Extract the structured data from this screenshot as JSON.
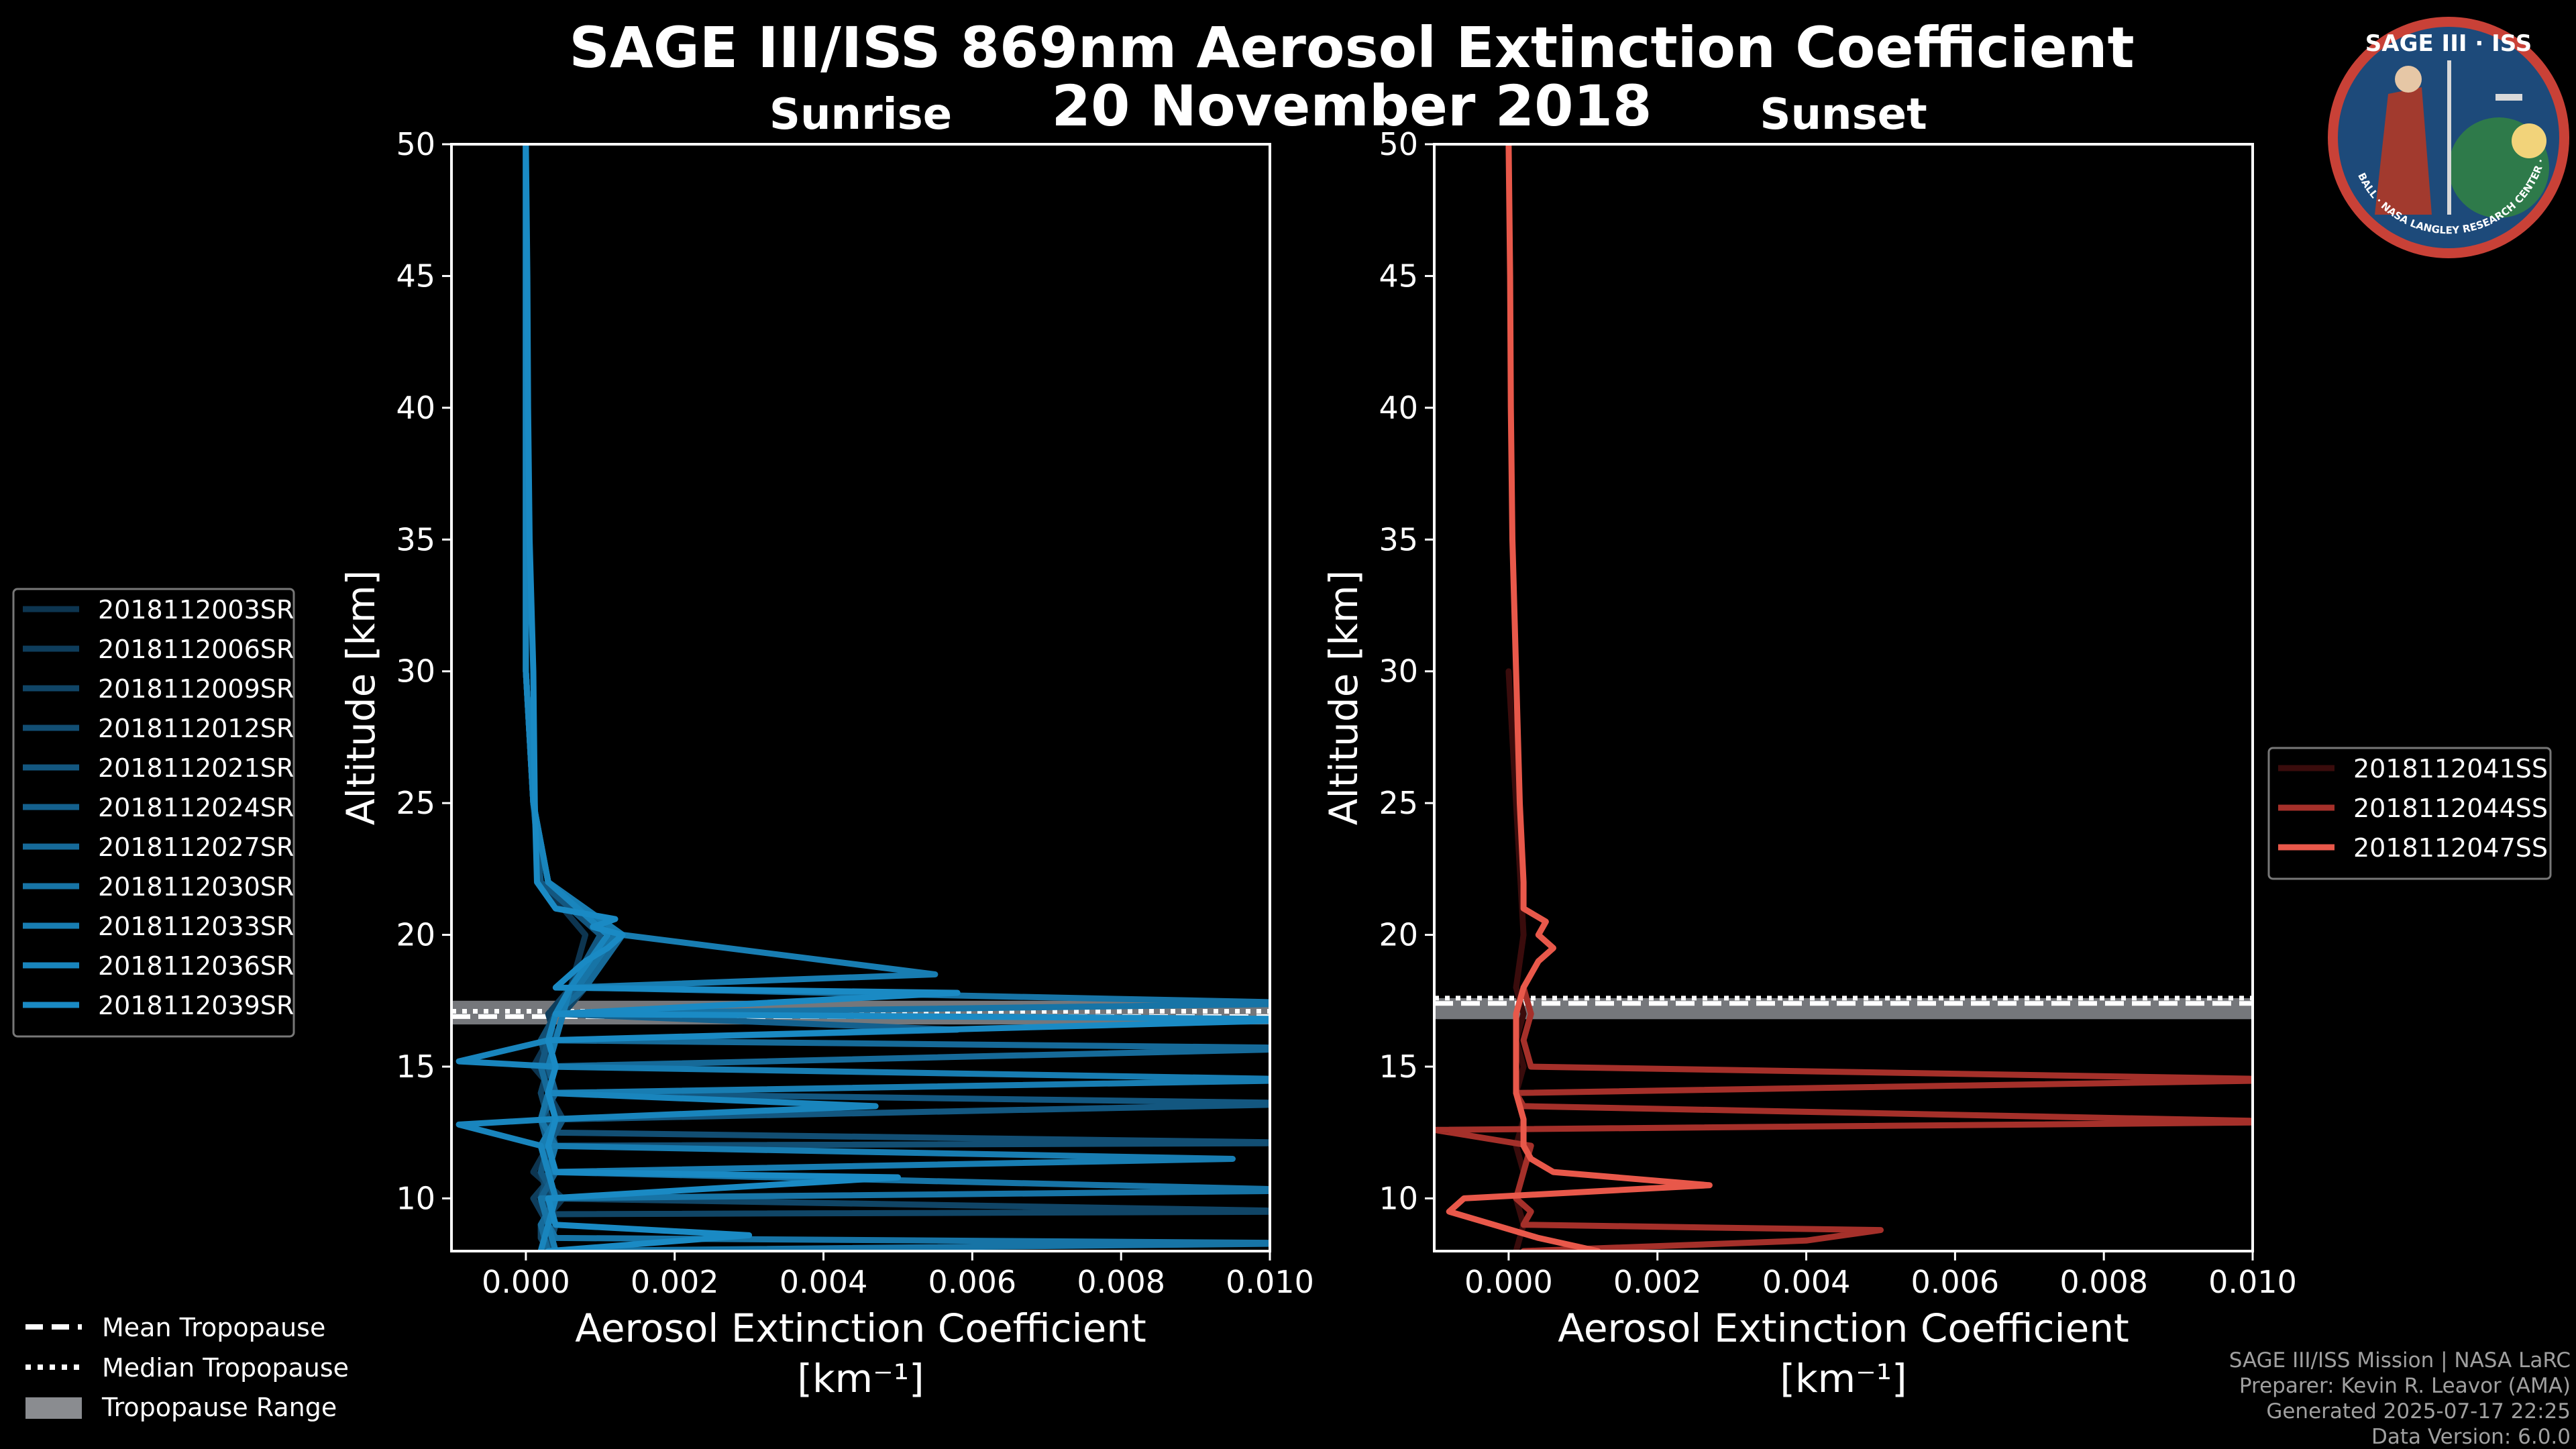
{
  "title": "SAGE III/ISS 869nm Aerosol Extinction Coefficient",
  "subtitle": "20 November 2018",
  "logo": {
    "text_top": "SAGE III · ISS",
    "text_ring": "BALL · NASA LANGLEY RESEARCH CENTER · TAS · ESA"
  },
  "colors": {
    "background": "#000000",
    "sunrise": "#1a8ac4",
    "sunset_light": "#e8584a",
    "sunset_mid": "#a5302a",
    "sunset_dark": "#3a0c0c",
    "tropo_band": "#8a8c90"
  },
  "footer": {
    "lines": [
      "SAGE III/ISS Mission | NASA LaRC",
      "Preparer: Kevin R. Leavor (AMA)",
      "Generated 2025-07-17 22:25",
      "Data Version: 6.0.0"
    ]
  },
  "tropo_legend": [
    "Mean Tropopause",
    "Median Tropopause",
    "Tropopause Range"
  ],
  "chart_data": [
    {
      "type": "line",
      "panel": "sunrise",
      "title": "Sunrise",
      "xlabel": "Aerosol Extinction Coefficient",
      "xunit": "[km⁻¹]",
      "ylabel": "Altitude [km]",
      "xlim": [
        -0.001,
        0.01
      ],
      "ylim": [
        8,
        50
      ],
      "xticks": [
        0.0,
        0.002,
        0.004,
        0.006,
        0.008,
        0.01
      ],
      "xticklabels": [
        "0.000",
        "0.002",
        "0.004",
        "0.006",
        "0.008",
        "0.010"
      ],
      "yticks": [
        10,
        15,
        20,
        25,
        30,
        35,
        40,
        45,
        50
      ],
      "tropopause": {
        "mean": 16.9,
        "median": 17.1,
        "range": [
          16.6,
          17.5
        ]
      },
      "legend_position": "left",
      "series": [
        {
          "name": "2018112003SR",
          "color": "#0d3550",
          "alt": [
            8.0,
            9.0,
            10.0,
            11.0,
            12.0,
            13.0,
            14.0,
            15.0,
            16.0,
            17.0,
            18.0,
            20.0,
            22.0,
            25.0,
            30.0,
            40.0,
            50.0
          ],
          "ext": [
            0.0004,
            0.0002,
            0.0005,
            0.0001,
            0.0003,
            0.0002,
            0.0004,
            0.0001,
            0.0003,
            0.0004,
            0.0006,
            0.0008,
            0.0002,
            0.0001,
            0.0,
            0.0,
            0.0
          ]
        },
        {
          "name": "2018112006SR",
          "color": "#0e3d5c",
          "alt": [
            8.0,
            9.0,
            10.0,
            11.0,
            12.0,
            13.0,
            14.0,
            15.0,
            16.0,
            17.0,
            18.0,
            20.0,
            22.0,
            25.0,
            30.0,
            40.0,
            50.0
          ],
          "ext": [
            0.0002,
            0.0003,
            0.0001,
            0.0004,
            0.0002,
            0.0005,
            0.0003,
            0.0002,
            0.0004,
            0.0003,
            0.0006,
            0.0012,
            0.0003,
            0.0001,
            0.0,
            0.0,
            0.0
          ]
        },
        {
          "name": "2018112009SR",
          "color": "#104566",
          "alt": [
            8.0,
            8.5,
            9.0,
            9.4,
            9.5,
            10.0,
            11.0,
            12.0,
            13.0,
            14.0,
            15.0,
            16.0,
            17.0,
            18.0,
            20.0,
            22.0,
            25.0,
            30.0,
            40.0,
            50.0
          ],
          "ext": [
            0.0003,
            0.0002,
            0.0002,
            0.0004,
            0.0108,
            0.0003,
            0.0002,
            0.0004,
            0.0003,
            0.0002,
            0.0003,
            0.0004,
            0.0005,
            0.0008,
            0.0011,
            0.0003,
            0.0001,
            0.0,
            0.0,
            0.0
          ]
        },
        {
          "name": "2018112012SR",
          "color": "#124e73",
          "alt": [
            8.0,
            9.0,
            10.0,
            11.0,
            12.0,
            12.1,
            12.5,
            13.0,
            14.0,
            15.0,
            16.0,
            17.0,
            18.0,
            20.0,
            22.0,
            25.0,
            30.0,
            40.0,
            50.0
          ],
          "ext": [
            0.0003,
            0.0004,
            0.0002,
            0.0003,
            0.0004,
            0.0108,
            0.0003,
            0.0002,
            0.0004,
            0.0003,
            0.0002,
            0.0004,
            0.0007,
            0.0013,
            0.0003,
            0.0001,
            0.0,
            0.0,
            0.0
          ]
        },
        {
          "name": "2018112021SR",
          "color": "#135780",
          "alt": [
            8.0,
            9.0,
            10.0,
            11.0,
            12.0,
            13.0,
            13.6,
            14.0,
            15.0,
            16.0,
            17.0,
            18.0,
            20.0,
            22.0,
            25.0,
            30.0,
            40.0,
            50.0
          ],
          "ext": [
            0.0002,
            0.0003,
            0.0004,
            0.0002,
            0.0003,
            0.0005,
            0.0108,
            0.0003,
            0.0002,
            0.0003,
            0.0004,
            0.0006,
            0.001,
            0.0002,
            0.0001,
            0.0,
            0.0,
            0.0
          ]
        },
        {
          "name": "2018112024SR",
          "color": "#14608d",
          "alt": [
            8.0,
            9.0,
            10.0,
            11.0,
            12.0,
            13.0,
            14.0,
            15.0,
            16.0,
            16.4,
            17.0,
            18.0,
            20.0,
            22.0,
            25.0,
            30.0,
            40.0,
            50.0
          ],
          "ext": [
            0.0004,
            0.0003,
            0.0002,
            0.0004,
            0.0003,
            0.0002,
            0.0004,
            0.0003,
            0.0004,
            0.0058,
            0.0004,
            0.0007,
            0.0012,
            0.0003,
            0.0001,
            0.0,
            0.0,
            0.0
          ]
        },
        {
          "name": "2018112027SR",
          "color": "#166a99",
          "alt": [
            8.0,
            9.0,
            10.0,
            11.0,
            12.0,
            13.0,
            14.0,
            15.0,
            15.7,
            16.0,
            17.0,
            18.0,
            20.0,
            22.0,
            25.0,
            30.0,
            40.0,
            50.0
          ],
          "ext": [
            0.0003,
            0.0002,
            0.0004,
            0.0003,
            0.0002,
            0.0004,
            0.0003,
            0.0002,
            0.0108,
            0.0003,
            0.0004,
            0.0008,
            0.0013,
            0.0003,
            0.0001,
            0.0,
            0.0,
            0.0
          ]
        },
        {
          "name": "2018112030SR",
          "color": "#1774a6",
          "alt": [
            8.0,
            8.3,
            8.5,
            9.0,
            10.0,
            10.3,
            11.0,
            12.0,
            13.0,
            14.0,
            15.0,
            16.0,
            17.0,
            17.4,
            18.0,
            20.0,
            22.0,
            25.0,
            30.0,
            40.0,
            50.0
          ],
          "ext": [
            0.0003,
            0.0108,
            0.0004,
            0.0003,
            0.0002,
            0.0108,
            0.0003,
            0.0004,
            0.0002,
            0.0003,
            0.0004,
            0.0003,
            0.0004,
            0.0108,
            0.0007,
            0.0012,
            0.0003,
            0.0001,
            0.0,
            0.0,
            0.0
          ]
        },
        {
          "name": "2018112033SR",
          "color": "#187db2",
          "alt": [
            8.0,
            9.0,
            10.0,
            11.0,
            11.5,
            12.0,
            12.5,
            13.0,
            14.0,
            14.5,
            15.0,
            16.0,
            17.0,
            18.0,
            18.5,
            20.0,
            22.0,
            25.0,
            30.0,
            40.0,
            50.0
          ],
          "ext": [
            0.0004,
            0.0003,
            0.0004,
            0.0003,
            0.0095,
            0.0002,
            0.0003,
            0.0004,
            0.0003,
            0.0108,
            0.0003,
            0.0004,
            0.0005,
            0.0006,
            0.0055,
            0.0013,
            0.0003,
            0.0001,
            0.0,
            0.0,
            0.0
          ]
        },
        {
          "name": "2018112036SR",
          "color": "#1985bd",
          "alt": [
            8.0,
            9.0,
            10.0,
            11.0,
            12.0,
            12.8,
            13.0,
            13.5,
            14.0,
            15.0,
            15.2,
            16.0,
            17.0,
            18.0,
            20.0,
            22.0,
            25.0,
            30.0,
            40.0,
            50.0
          ],
          "ext": [
            0.0002,
            0.0003,
            0.0004,
            0.0003,
            0.0002,
            -0.0009,
            0.0003,
            0.0047,
            0.0003,
            0.0004,
            -0.0009,
            0.0003,
            0.0004,
            0.0006,
            0.0011,
            0.0003,
            0.0001,
            0.0,
            0.0,
            0.0
          ]
        },
        {
          "name": "2018112039SR",
          "color": "#1a8ac4",
          "alt": [
            8.0,
            8.6,
            9.0,
            10.0,
            10.8,
            11.0,
            12.0,
            13.0,
            14.0,
            15.0,
            16.0,
            16.8,
            17.0,
            17.8,
            18.0,
            19.0,
            19.5,
            20.0,
            20.3,
            20.6,
            21.0,
            22.0,
            25.0,
            30.0,
            35.0,
            40.0,
            45.0,
            50.0
          ],
          "ext": [
            0.0003,
            0.003,
            0.0004,
            0.0003,
            0.005,
            0.0004,
            0.0003,
            0.0004,
            0.0003,
            0.0004,
            0.0003,
            0.0108,
            0.0004,
            0.0058,
            0.0004,
            0.0008,
            0.0011,
            0.0013,
            0.0009,
            0.0012,
            0.0004,
            0.00015,
            0.00012,
            0.0001,
            5e-05,
            3e-05,
            2e-05,
            0.0
          ]
        }
      ]
    },
    {
      "type": "line",
      "panel": "sunset",
      "title": "Sunset",
      "xlabel": "Aerosol Extinction Coefficient",
      "xunit": "[km⁻¹]",
      "ylabel": "Altitude [km]",
      "xlim": [
        -0.001,
        0.01
      ],
      "ylim": [
        8,
        50
      ],
      "xticks": [
        0.0,
        0.002,
        0.004,
        0.006,
        0.008,
        0.01
      ],
      "xticklabels": [
        "0.000",
        "0.002",
        "0.004",
        "0.006",
        "0.008",
        "0.010"
      ],
      "yticks": [
        10,
        15,
        20,
        25,
        30,
        35,
        40,
        45,
        50
      ],
      "tropopause": {
        "mean": 17.4,
        "median": 17.6,
        "range": [
          16.8,
          17.6
        ]
      },
      "legend_position": "right",
      "series": [
        {
          "name": "2018112041SS",
          "color": "#3a0c0c",
          "alt": [
            8.0,
            9.0,
            10.0,
            11.0,
            12.0,
            13.0,
            14.0,
            15.0,
            16.0,
            17.0,
            18.0,
            20.0,
            25.0,
            30.0
          ],
          "ext": [
            0.0001,
            0.0002,
            0.0001,
            0.0002,
            0.0001,
            0.0002,
            0.0001,
            0.0002,
            0.0001,
            0.0002,
            0.0001,
            0.0002,
            0.0001,
            0.0
          ]
        },
        {
          "name": "2018112044SS",
          "color": "#a5302a",
          "alt": [
            8.0,
            8.4,
            8.8,
            9.0,
            9.5,
            10.0,
            11.0,
            12.0,
            12.6,
            12.9,
            13.5,
            14.0,
            14.5,
            15.0,
            16.0,
            17.0,
            18.0
          ],
          "ext": [
            0.0002,
            0.004,
            0.005,
            0.0002,
            0.0003,
            0.0001,
            0.0002,
            0.0003,
            -0.001,
            0.0108,
            0.0002,
            0.0001,
            0.0108,
            0.0003,
            0.0002,
            0.0003,
            0.0002
          ]
        },
        {
          "name": "2018112047SS",
          "color": "#e8584a",
          "alt": [
            8.0,
            8.5,
            9.0,
            9.5,
            10.0,
            10.5,
            11.0,
            11.5,
            12.0,
            13.0,
            14.0,
            15.0,
            16.0,
            17.0,
            18.0,
            19.0,
            19.5,
            20.0,
            20.5,
            21.0,
            22.0,
            25.0,
            30.0,
            35.0,
            40.0,
            45.0,
            50.0
          ],
          "ext": [
            0.0012,
            0.0004,
            -0.0002,
            -0.0008,
            -0.0006,
            0.0027,
            0.0006,
            0.0003,
            0.0002,
            0.0002,
            0.0001,
            0.0001,
            0.0001,
            0.0001,
            0.0002,
            0.0004,
            0.0006,
            0.0004,
            0.0005,
            0.0002,
            0.0002,
            0.00015,
            0.0001,
            5e-05,
            3e-05,
            2e-05,
            0.0
          ]
        }
      ]
    }
  ]
}
